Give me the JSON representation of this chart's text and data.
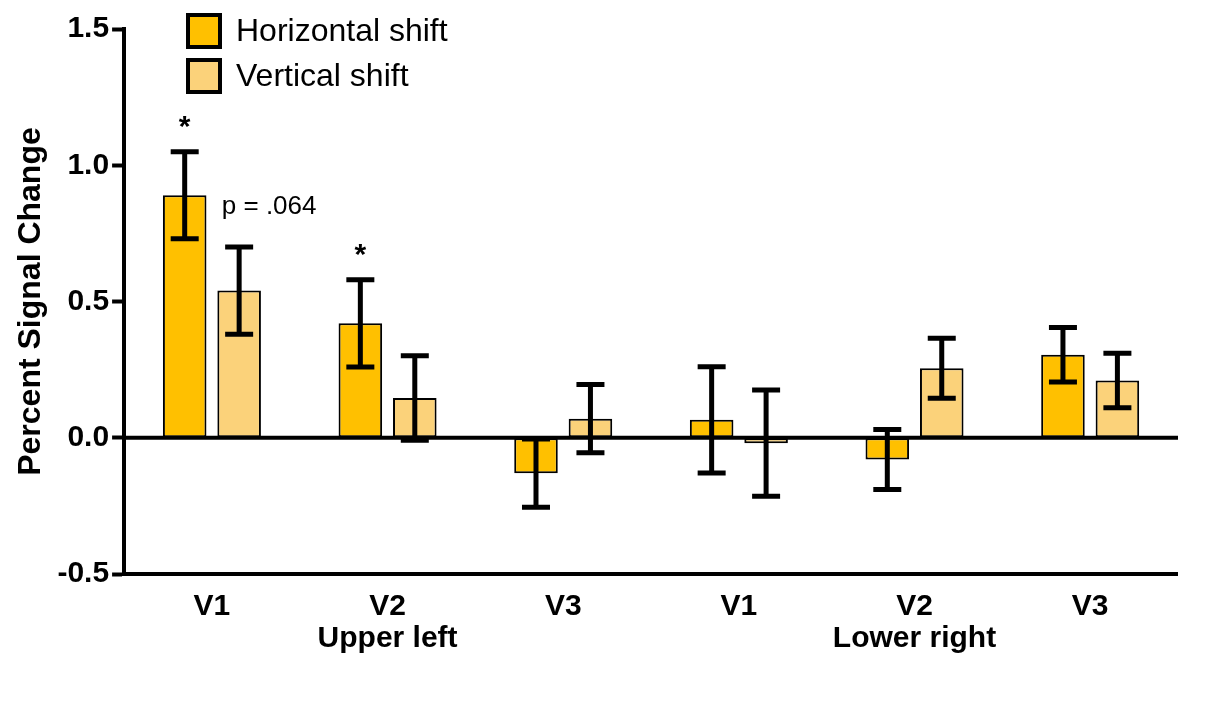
{
  "chart_data": {
    "type": "bar",
    "ylabel": "Percent Signal Change",
    "categories": [
      "V1",
      "V2",
      "V3",
      "V1",
      "V2",
      "V3"
    ],
    "series": [
      {
        "name": "Horizontal shift",
        "color": "#ffc000",
        "values": [
          0.89,
          0.42,
          -0.13,
          0.066,
          -0.08,
          0.305
        ],
        "errors": [
          0.16,
          0.16,
          0.125,
          0.195,
          0.11,
          0.1
        ]
      },
      {
        "name": "Vertical shift",
        "color": "#fbd27a",
        "values": [
          0.54,
          0.146,
          0.07,
          -0.02,
          0.255,
          0.21
        ],
        "errors": [
          0.16,
          0.155,
          0.125,
          0.195,
          0.11,
          0.1
        ]
      }
    ],
    "ylim": [
      -0.5,
      1.5
    ],
    "yticks": [
      {
        "value": -0.5,
        "label": "-0.5"
      },
      {
        "value": 0,
        "label": "0.0"
      },
      {
        "value": 0.5,
        "label": "0.5"
      },
      {
        "value": 1,
        "label": "1.0"
      },
      {
        "value": 1.5,
        "label": "1.5"
      }
    ],
    "ref_lines": [
      {
        "axis": "y",
        "value": 0,
        "color": "#000000"
      }
    ],
    "annotations": [
      "*",
      "*",
      "p = .064",
      "Upper left",
      "Lower right"
    ],
    "grid": false,
    "legend": "top left"
  }
}
